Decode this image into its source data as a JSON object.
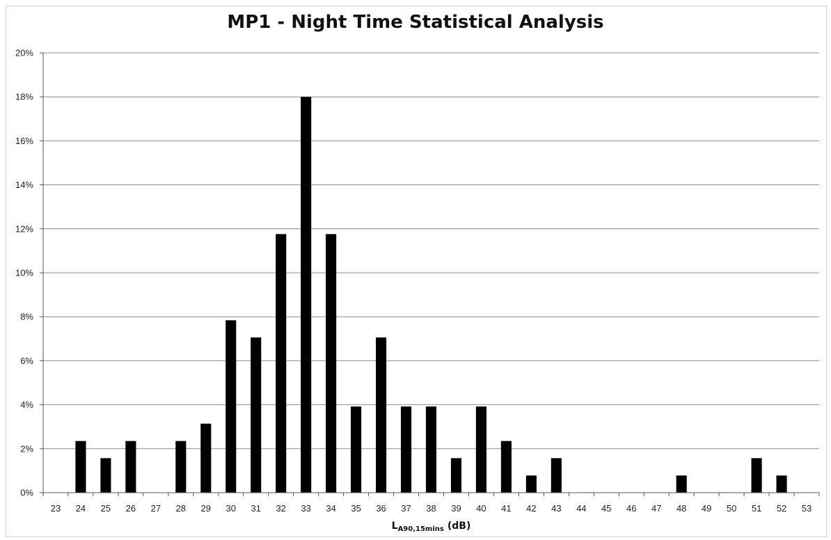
{
  "chart_data": {
    "type": "bar",
    "title": "MP1 - Night Time Statistical Analysis",
    "xlabel": {
      "main": "L",
      "sub": "A90,15mins",
      "unit": "(dB)"
    },
    "ylabel": "",
    "ylim": [
      0,
      20
    ],
    "yticks": [
      0,
      2,
      4,
      6,
      8,
      10,
      12,
      14,
      16,
      18,
      20
    ],
    "ytick_suffix": "%",
    "grid": true,
    "legend": "none",
    "bar_color": "#000000",
    "categories": [
      "23",
      "24",
      "25",
      "26",
      "27",
      "28",
      "29",
      "30",
      "31",
      "32",
      "33",
      "34",
      "35",
      "36",
      "37",
      "38",
      "39",
      "40",
      "41",
      "42",
      "43",
      "44",
      "45",
      "46",
      "47",
      "48",
      "49",
      "50",
      "51",
      "52",
      "53"
    ],
    "values": [
      0,
      2.35,
      1.57,
      2.35,
      0,
      2.35,
      3.14,
      7.84,
      7.06,
      11.76,
      18.0,
      11.76,
      3.92,
      7.06,
      3.92,
      3.92,
      1.57,
      3.92,
      2.35,
      0.78,
      1.57,
      0,
      0,
      0,
      0,
      0.78,
      0,
      0,
      1.57,
      0.78,
      0
    ]
  }
}
